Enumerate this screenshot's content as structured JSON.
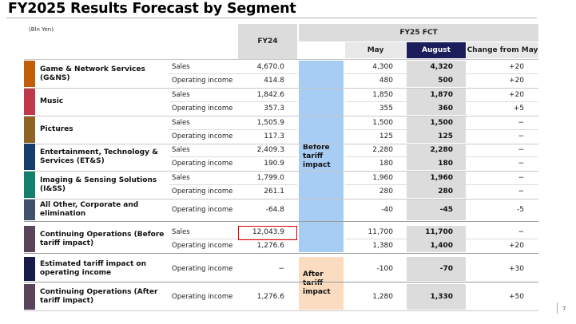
{
  "title": "FY2025 Results Forecast by Segment",
  "unit": "(Bln Yen)",
  "headers": {
    "fy24": "FY24",
    "fy25": "FY25 FCT",
    "may": "May",
    "august": "August",
    "change": "Change from May"
  },
  "impact": {
    "before": "Before tariff impact",
    "after": "After tariff impact"
  },
  "colors": {
    "august_header": "#1b1e5a",
    "before_impact": "#a8cdf5",
    "after_impact": "#fbdcc0",
    "highlight_box": "#e00000"
  },
  "segments": [
    {
      "name": "Game & Network Services (G&NS)",
      "color": "#c25e0a",
      "rows": [
        {
          "metric": "Sales",
          "fy24": "4,670.0",
          "may": "4,300",
          "august": "4,320",
          "change": "+20"
        },
        {
          "metric": "Operating income",
          "fy24": "414.8",
          "may": "480",
          "august": "500",
          "change": "+20"
        }
      ]
    },
    {
      "name": "Music",
      "color": "#c0394a",
      "rows": [
        {
          "metric": "Sales",
          "fy24": "1,842.6",
          "may": "1,850",
          "august": "1,870",
          "change": "+20"
        },
        {
          "metric": "Operating income",
          "fy24": "357.3",
          "may": "355",
          "august": "360",
          "change": "+5"
        }
      ]
    },
    {
      "name": "Pictures",
      "color": "#8d6424",
      "rows": [
        {
          "metric": "Sales",
          "fy24": "1,505.9",
          "may": "1,500",
          "august": "1,500",
          "change": "−"
        },
        {
          "metric": "Operating income",
          "fy24": "117.3",
          "may": "125",
          "august": "125",
          "change": "−"
        }
      ]
    },
    {
      "name": "Entertainment, Technology & Services (ET&S)",
      "color": "#153d6e",
      "rows": [
        {
          "metric": "Sales",
          "fy24": "2,409.3",
          "may": "2,280",
          "august": "2,280",
          "change": "−"
        },
        {
          "metric": "Operating income",
          "fy24": "190.9",
          "may": "180",
          "august": "180",
          "change": "−"
        }
      ]
    },
    {
      "name": "Imaging & Sensing Solutions (I&SS)",
      "color": "#13806e",
      "rows": [
        {
          "metric": "Sales",
          "fy24": "1,799.0",
          "may": "1,960",
          "august": "1,960",
          "change": "−"
        },
        {
          "metric": "Operating income",
          "fy24": "261.1",
          "may": "280",
          "august": "280",
          "change": "−"
        }
      ]
    },
    {
      "name": "All Other, Corporate and elimination",
      "color": "#3f5269",
      "rows": [
        {
          "metric": "Operating income",
          "fy24": "-64.8",
          "may": "-40",
          "august": "-45",
          "change": "-5"
        }
      ]
    },
    {
      "name": "Continuing Operations (Before tariff impact)",
      "color": "#5a4459",
      "rows": [
        {
          "metric": "Sales",
          "fy24": "12,043.9",
          "may": "11,700",
          "august": "11,700",
          "change": "−"
        },
        {
          "metric": "Operating income",
          "fy24": "1,276.6",
          "may": "1,380",
          "august": "1,400",
          "change": "+20"
        }
      ]
    },
    {
      "name": "Estimated tariff impact on operating income",
      "color": "#191c4a",
      "rows": [
        {
          "metric": "Operating income",
          "fy24": "−",
          "may": "-100",
          "august": "-70",
          "change": "+30"
        }
      ]
    },
    {
      "name": "Continuing Operations (After tariff impact)",
      "color": "#5a4459",
      "rows": [
        {
          "metric": "Operating income",
          "fy24": "1,276.6",
          "may": "1,280",
          "august": "1,330",
          "change": "+50"
        }
      ]
    }
  ],
  "page_number": "7"
}
